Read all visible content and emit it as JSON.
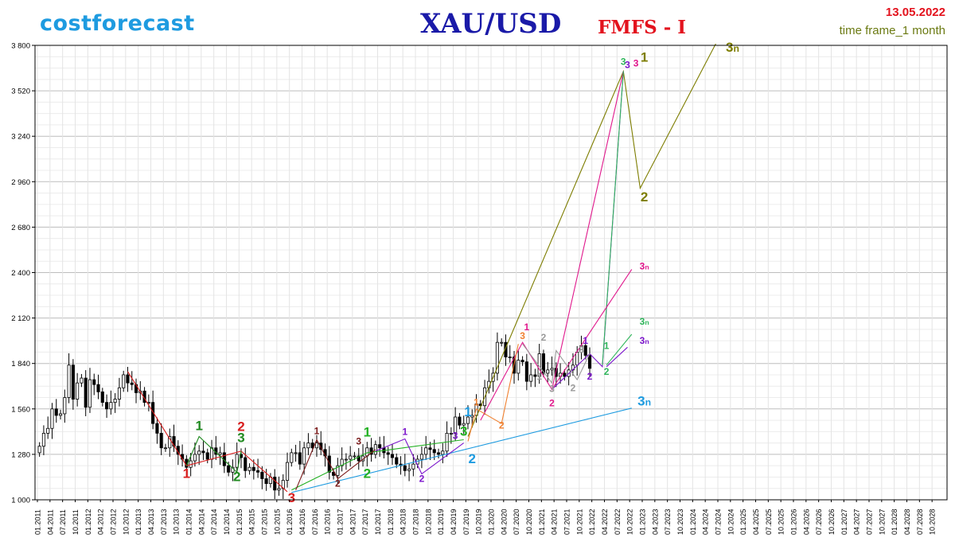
{
  "header": {
    "brand": "costforecast",
    "instrument": "XAU/USD",
    "model": "FMFS - I",
    "date": "13.05.2022",
    "timeframe": "time frame_1 month"
  },
  "colors": {
    "brand": "#1e9be0",
    "instrument": "#1a1aa8",
    "model": "#e3121d",
    "date": "#e3121d",
    "timeframe": "#6b7a12",
    "grid": "#dcdcdc",
    "axis": "#000000"
  },
  "chart_data": {
    "type": "candlestick",
    "title": "XAU/USD",
    "timeframe": "1 month",
    "ylim": [
      1000,
      3800
    ],
    "y_ticks": [
      "3 800",
      "3 520",
      "3 240",
      "2 960",
      "2 680",
      "2 400",
      "2 120",
      "1 840",
      "1 560",
      "1 280",
      "1 000"
    ],
    "y_tick_values": [
      3800,
      3520,
      3240,
      2960,
      2680,
      2400,
      2120,
      1840,
      1560,
      1280,
      1000
    ],
    "x_range": [
      "2011-01",
      "2028-12"
    ],
    "x_ticks": [
      "01.2011",
      "04.2011",
      "07.2011",
      "10.2011",
      "01.2012",
      "04.2012",
      "07.2012",
      "10.2012",
      "01.2013",
      "04.2013",
      "07.2013",
      "10.2013",
      "01.2014",
      "04.2014",
      "07.2014",
      "10.2014",
      "01.2015",
      "04.2015",
      "07.2015",
      "10.2015",
      "01.2016",
      "04.2016",
      "07.2016",
      "10.2016",
      "01.2017",
      "04.2017",
      "07.2017",
      "10.2017",
      "01.2018",
      "04.2018",
      "07.2018",
      "10.2018",
      "01.2019",
      "04.2019",
      "07.2019",
      "10.2019",
      "01.2020",
      "04.2020",
      "07.2020",
      "10.2020",
      "01.2021",
      "04.2021",
      "07.2021",
      "10.2021",
      "01.2022",
      "04.2022",
      "07.2022",
      "10.2022",
      "01.2023",
      "04.2023",
      "07.2023",
      "10.2023",
      "01.2024",
      "04.2024",
      "07.2024",
      "10.2024",
      "01.2025",
      "04.2025",
      "07.2025",
      "10.2025",
      "01.2026",
      "04.2026",
      "07.2026",
      "10.2026",
      "01.2027",
      "04.2027",
      "07.2027",
      "10.2027",
      "01.2028",
      "04.2028",
      "07.2028",
      "10.2028"
    ],
    "candles_close": [
      1330,
      1410,
      1440,
      1560,
      1520,
      1530,
      1630,
      1830,
      1620,
      1720,
      1750,
      1570,
      1740,
      1710,
      1665,
      1600,
      1560,
      1600,
      1620,
      1690,
      1770,
      1720,
      1710,
      1660,
      1670,
      1600,
      1600,
      1470,
      1410,
      1320,
      1320,
      1390,
      1330,
      1280,
      1250,
      1200,
      1240,
      1280,
      1300,
      1290,
      1250,
      1320,
      1280,
      1290,
      1210,
      1170,
      1200,
      1280,
      1260,
      1180,
      1200,
      1180,
      1170,
      1130,
      1100,
      1140,
      1060,
      1070,
      1120,
      1230,
      1290,
      1290,
      1220,
      1320,
      1350,
      1320,
      1350,
      1310,
      1270,
      1170,
      1150,
      1210,
      1250,
      1250,
      1270,
      1270,
      1240,
      1270,
      1320,
      1280,
      1340,
      1320,
      1290,
      1280,
      1260,
      1220,
      1210,
      1180,
      1190,
      1220,
      1250,
      1280,
      1320,
      1310,
      1290,
      1280,
      1300,
      1410,
      1410,
      1510,
      1460,
      1470,
      1510,
      1520,
      1590,
      1580,
      1690,
      1730,
      1780,
      1970,
      1970,
      1880,
      1880,
      1780,
      1860,
      1850,
      1730,
      1770,
      1760,
      1900,
      1780,
      1800,
      1810,
      1760,
      1780,
      1760,
      1800,
      1830,
      1910,
      1950,
      1890,
      1810
    ],
    "candles_first_month": "2011-01",
    "series": [
      {
        "name": "1",
        "color": "#7d7d00",
        "points": [
          [
            "2019-07",
            1390
          ],
          [
            "2022-08",
            3640
          ],
          [
            "2022-12",
            2920
          ],
          [
            "2024-06",
            3810
          ]
        ]
      },
      {
        "name": "3",
        "color": "#e0188c",
        "points": [
          [
            "2019-10",
            1490
          ],
          [
            "2020-08",
            1970
          ],
          [
            "2021-03",
            1680
          ],
          [
            "2022-08",
            3640
          ]
        ]
      },
      {
        "name": "3",
        "color": "#7c16cc",
        "points": [
          [
            "2021-03",
            1680
          ],
          [
            "2021-12",
            1900
          ],
          [
            "2022-03",
            1820
          ],
          [
            "2022-08",
            3640
          ]
        ]
      },
      {
        "name": "3",
        "color": "#2fb65b",
        "points": [
          [
            "2022-03",
            1830
          ],
          [
            "2022-08",
            3640
          ]
        ]
      },
      {
        "name": "3n",
        "color": "#e0188c",
        "points": [
          [
            "2021-03",
            1680
          ],
          [
            "2022-10",
            2420
          ]
        ]
      },
      {
        "name": "3n",
        "color": "#2fb65b",
        "points": [
          [
            "2022-04",
            1830
          ],
          [
            "2022-10",
            2020
          ]
        ]
      },
      {
        "name": "3n",
        "color": "#7c16cc",
        "points": [
          [
            "2022-04",
            1820
          ],
          [
            "2022-09",
            1940
          ]
        ]
      },
      {
        "name": "3n",
        "color": "#1e9be0",
        "points": [
          [
            "2016-01",
            1045
          ],
          [
            "2022-10",
            1565
          ]
        ]
      },
      {
        "name": "",
        "color": "#d81e1e",
        "points": [
          [
            "2012-10",
            1790
          ],
          [
            "2013-12",
            1210
          ],
          [
            "2015-01",
            1300
          ],
          [
            "2015-12",
            1050
          ]
        ]
      },
      {
        "name": "",
        "color": "#1f8a1f",
        "points": [
          [
            "2013-12",
            1210
          ],
          [
            "2014-03",
            1390
          ],
          [
            "2014-12",
            1170
          ],
          [
            "2015-01",
            1300
          ]
        ]
      },
      {
        "name": "",
        "color": "#22b022",
        "points": [
          [
            "2016-01",
            1060
          ],
          [
            "2017-07",
            1290
          ],
          [
            "2019-06",
            1370
          ]
        ]
      },
      {
        "name": "",
        "color": "#7a1a1a",
        "points": [
          [
            "2016-02",
            1060
          ],
          [
            "2016-07",
            1370
          ],
          [
            "2016-12",
            1130
          ],
          [
            "2017-09",
            1310
          ]
        ]
      },
      {
        "name": "",
        "color": "#7c16cc",
        "points": [
          [
            "2017-09",
            1300
          ],
          [
            "2018-04",
            1375
          ],
          [
            "2018-08",
            1160
          ],
          [
            "2019-06",
            1350
          ]
        ]
      },
      {
        "name": "",
        "color": "#f08030",
        "points": [
          [
            "2019-07",
            1360
          ],
          [
            "2019-09",
            1560
          ],
          [
            "2020-03",
            1470
          ],
          [
            "2020-07",
            1960
          ]
        ]
      },
      {
        "name": "",
        "color": "#9a9a9a",
        "points": [
          [
            "2020-08",
            1960
          ],
          [
            "2021-03",
            1720
          ],
          [
            "2021-04",
            1920
          ],
          [
            "2021-09",
            1740
          ],
          [
            "2021-12",
            1900
          ]
        ]
      }
    ],
    "wave_labels": [
      {
        "text": "1",
        "color": "#d81e1e",
        "x": "2013-12",
        "y": 1135
      },
      {
        "text": "2",
        "color": "#d81e1e",
        "x": "2015-01",
        "y": 1425
      },
      {
        "text": "3",
        "color": "#d81e1e",
        "x": "2016-01",
        "y": 985
      },
      {
        "text": "1",
        "color": "#1f8a1f",
        "x": "2014-03",
        "y": 1430
      },
      {
        "text": "2",
        "color": "#1f8a1f",
        "x": "2014-12",
        "y": 1115
      },
      {
        "text": "3",
        "color": "#1f8a1f",
        "x": "2015-01",
        "y": 1355
      },
      {
        "text": "1",
        "color": "#7a1a1a",
        "x": "2016-07",
        "y": 1405
      },
      {
        "text": "2",
        "color": "#7a1a1a",
        "x": "2016-12",
        "y": 1080
      },
      {
        "text": "3",
        "color": "#7a1a1a",
        "x": "2017-05",
        "y": 1340
      },
      {
        "text": "1",
        "color": "#22b022",
        "x": "2017-07",
        "y": 1390
      },
      {
        "text": "2",
        "color": "#22b022",
        "x": "2017-07",
        "y": 1135
      },
      {
        "text": "3",
        "color": "#22b022",
        "x": "2019-06",
        "y": 1395
      },
      {
        "text": "1",
        "color": "#7c16cc",
        "x": "2018-04",
        "y": 1400
      },
      {
        "text": "2",
        "color": "#7c16cc",
        "x": "2018-08",
        "y": 1110
      },
      {
        "text": "3",
        "color": "#7c16cc",
        "x": "2019-04",
        "y": 1375
      },
      {
        "text": "1",
        "color": "#1e9be0",
        "x": "2019-07",
        "y": 1515
      },
      {
        "text": "2",
        "color": "#1e9be0",
        "x": "2019-08",
        "y": 1225
      },
      {
        "text": "1",
        "color": "#f08030",
        "x": "2019-09",
        "y": 1580
      },
      {
        "text": "2",
        "color": "#f08030",
        "x": "2020-03",
        "y": 1440
      },
      {
        "text": "3",
        "color": "#f08030",
        "x": "2020-08",
        "y": 1990
      },
      {
        "text": "1",
        "color": "#e0188c",
        "x": "2020-09",
        "y": 2045
      },
      {
        "text": "2",
        "color": "#e0188c",
        "x": "2021-03",
        "y": 1575
      },
      {
        "text": "2",
        "color": "#9a9a9a",
        "x": "2021-01",
        "y": 1980
      },
      {
        "text": "1",
        "color": "#9a9a9a",
        "x": "2020-12",
        "y": 1740
      },
      {
        "text": "3",
        "color": "#9a9a9a",
        "x": "2021-03",
        "y": 1665
      },
      {
        "text": "2",
        "color": "#9a9a9a",
        "x": "2021-08",
        "y": 1670
      },
      {
        "text": "3",
        "color": "#9a9a9a",
        "x": "2021-10",
        "y": 1905
      },
      {
        "text": "1",
        "color": "#7c16cc",
        "x": "2021-11",
        "y": 1960
      },
      {
        "text": "2",
        "color": "#7c16cc",
        "x": "2021-12",
        "y": 1740
      },
      {
        "text": "1",
        "color": "#2fb65b",
        "x": "2022-04",
        "y": 1930
      },
      {
        "text": "2",
        "color": "#2fb65b",
        "x": "2022-04",
        "y": 1770
      },
      {
        "text": "3",
        "color": "#2fb65b",
        "x": "2022-08",
        "y": 3680
      },
      {
        "text": "3",
        "color": "#7c16cc",
        "x": "2022-09",
        "y": 3660
      },
      {
        "text": "3",
        "color": "#e0188c",
        "x": "2022-11",
        "y": 3670
      },
      {
        "text": "1",
        "color": "#7d7d00",
        "x": "2023-01",
        "y": 3700
      },
      {
        "text": "2",
        "color": "#7d7d00",
        "x": "2023-01",
        "y": 2840
      },
      {
        "text": "3n",
        "color": "#7d7d00",
        "x": "2024-10",
        "y": 3760
      },
      {
        "text": "3n",
        "color": "#e0188c",
        "x": "2023-01",
        "y": 2420
      },
      {
        "text": "3n",
        "color": "#2fb65b",
        "x": "2023-01",
        "y": 2080
      },
      {
        "text": "3n",
        "color": "#7c16cc",
        "x": "2023-01",
        "y": 1960
      },
      {
        "text": "3n",
        "color": "#1e9be0",
        "x": "2023-01",
        "y": 1580
      }
    ]
  }
}
